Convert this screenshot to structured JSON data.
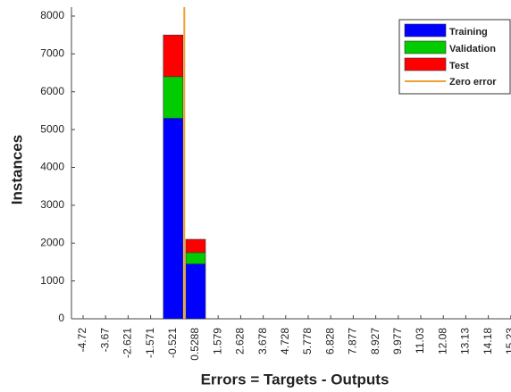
{
  "chart_data": {
    "type": "bar",
    "stacked": true,
    "x_label": "Errors = Targets - Outputs",
    "y_label": "Instances",
    "categories": [
      "-4.72",
      "-3.67",
      "-2.621",
      "-1.571",
      "-0.521",
      "0.5288",
      "1.579",
      "2.628",
      "3.678",
      "4.728",
      "5.778",
      "6.828",
      "7.877",
      "8.927",
      "9.977",
      "11.03",
      "12.08",
      "13.13",
      "14.18",
      "15.23"
    ],
    "series": [
      {
        "name": "Training",
        "color": "#0000ff",
        "values": [
          0,
          0,
          0,
          0,
          5300,
          1450,
          0,
          0,
          0,
          0,
          0,
          0,
          0,
          0,
          0,
          0,
          0,
          0,
          0,
          0
        ]
      },
      {
        "name": "Validation",
        "color": "#00cc00",
        "values": [
          0,
          0,
          0,
          0,
          1100,
          300,
          0,
          0,
          0,
          0,
          0,
          0,
          0,
          0,
          0,
          0,
          0,
          0,
          0,
          0
        ]
      },
      {
        "name": "Test",
        "color": "#ff0000",
        "values": [
          0,
          0,
          0,
          0,
          1100,
          350,
          0,
          0,
          0,
          0,
          0,
          0,
          0,
          0,
          0,
          0,
          0,
          0,
          0,
          0
        ]
      }
    ],
    "reference_line": {
      "name": "Zero error",
      "color": "#f0a030",
      "x": 0
    },
    "ylim": [
      0,
      8000
    ],
    "yticks": [
      0,
      1000,
      2000,
      3000,
      4000,
      5000,
      6000,
      7000,
      8000
    ],
    "legend": "top-right"
  }
}
